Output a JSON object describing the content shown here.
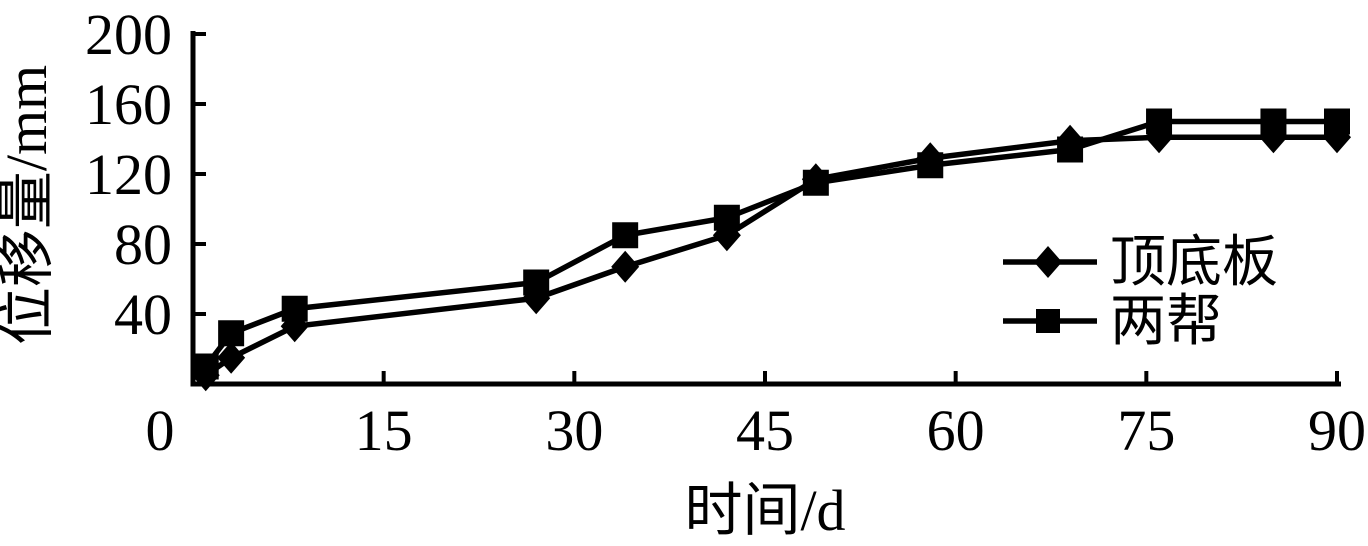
{
  "figure": {
    "background": "#ffffff",
    "ink_color": "#000000"
  },
  "chart_data": {
    "type": "line",
    "title": "",
    "xlabel": "时间/d",
    "ylabel": "位移量/mm",
    "xlim": [
      0,
      90
    ],
    "ylim": [
      0,
      200
    ],
    "x_ticks": [
      0,
      15,
      30,
      45,
      60,
      75,
      90
    ],
    "y_ticks": [
      40,
      80,
      120,
      160,
      200
    ],
    "grid": false,
    "legend_position": "inside-right-middle",
    "line_color": "#000000",
    "x": [
      1,
      3,
      8,
      27,
      34,
      42,
      49,
      58,
      69,
      76,
      85,
      90
    ],
    "series": [
      {
        "name": "顶底板",
        "marker": "diamond",
        "values": [
          5,
          15,
          33,
          49,
          67,
          85,
          117,
          129,
          139,
          141,
          141,
          141
        ]
      },
      {
        "name": "两帮",
        "marker": "square",
        "values": [
          10,
          29,
          43,
          58,
          85,
          95,
          115,
          125,
          134,
          150,
          150,
          150
        ]
      }
    ]
  }
}
